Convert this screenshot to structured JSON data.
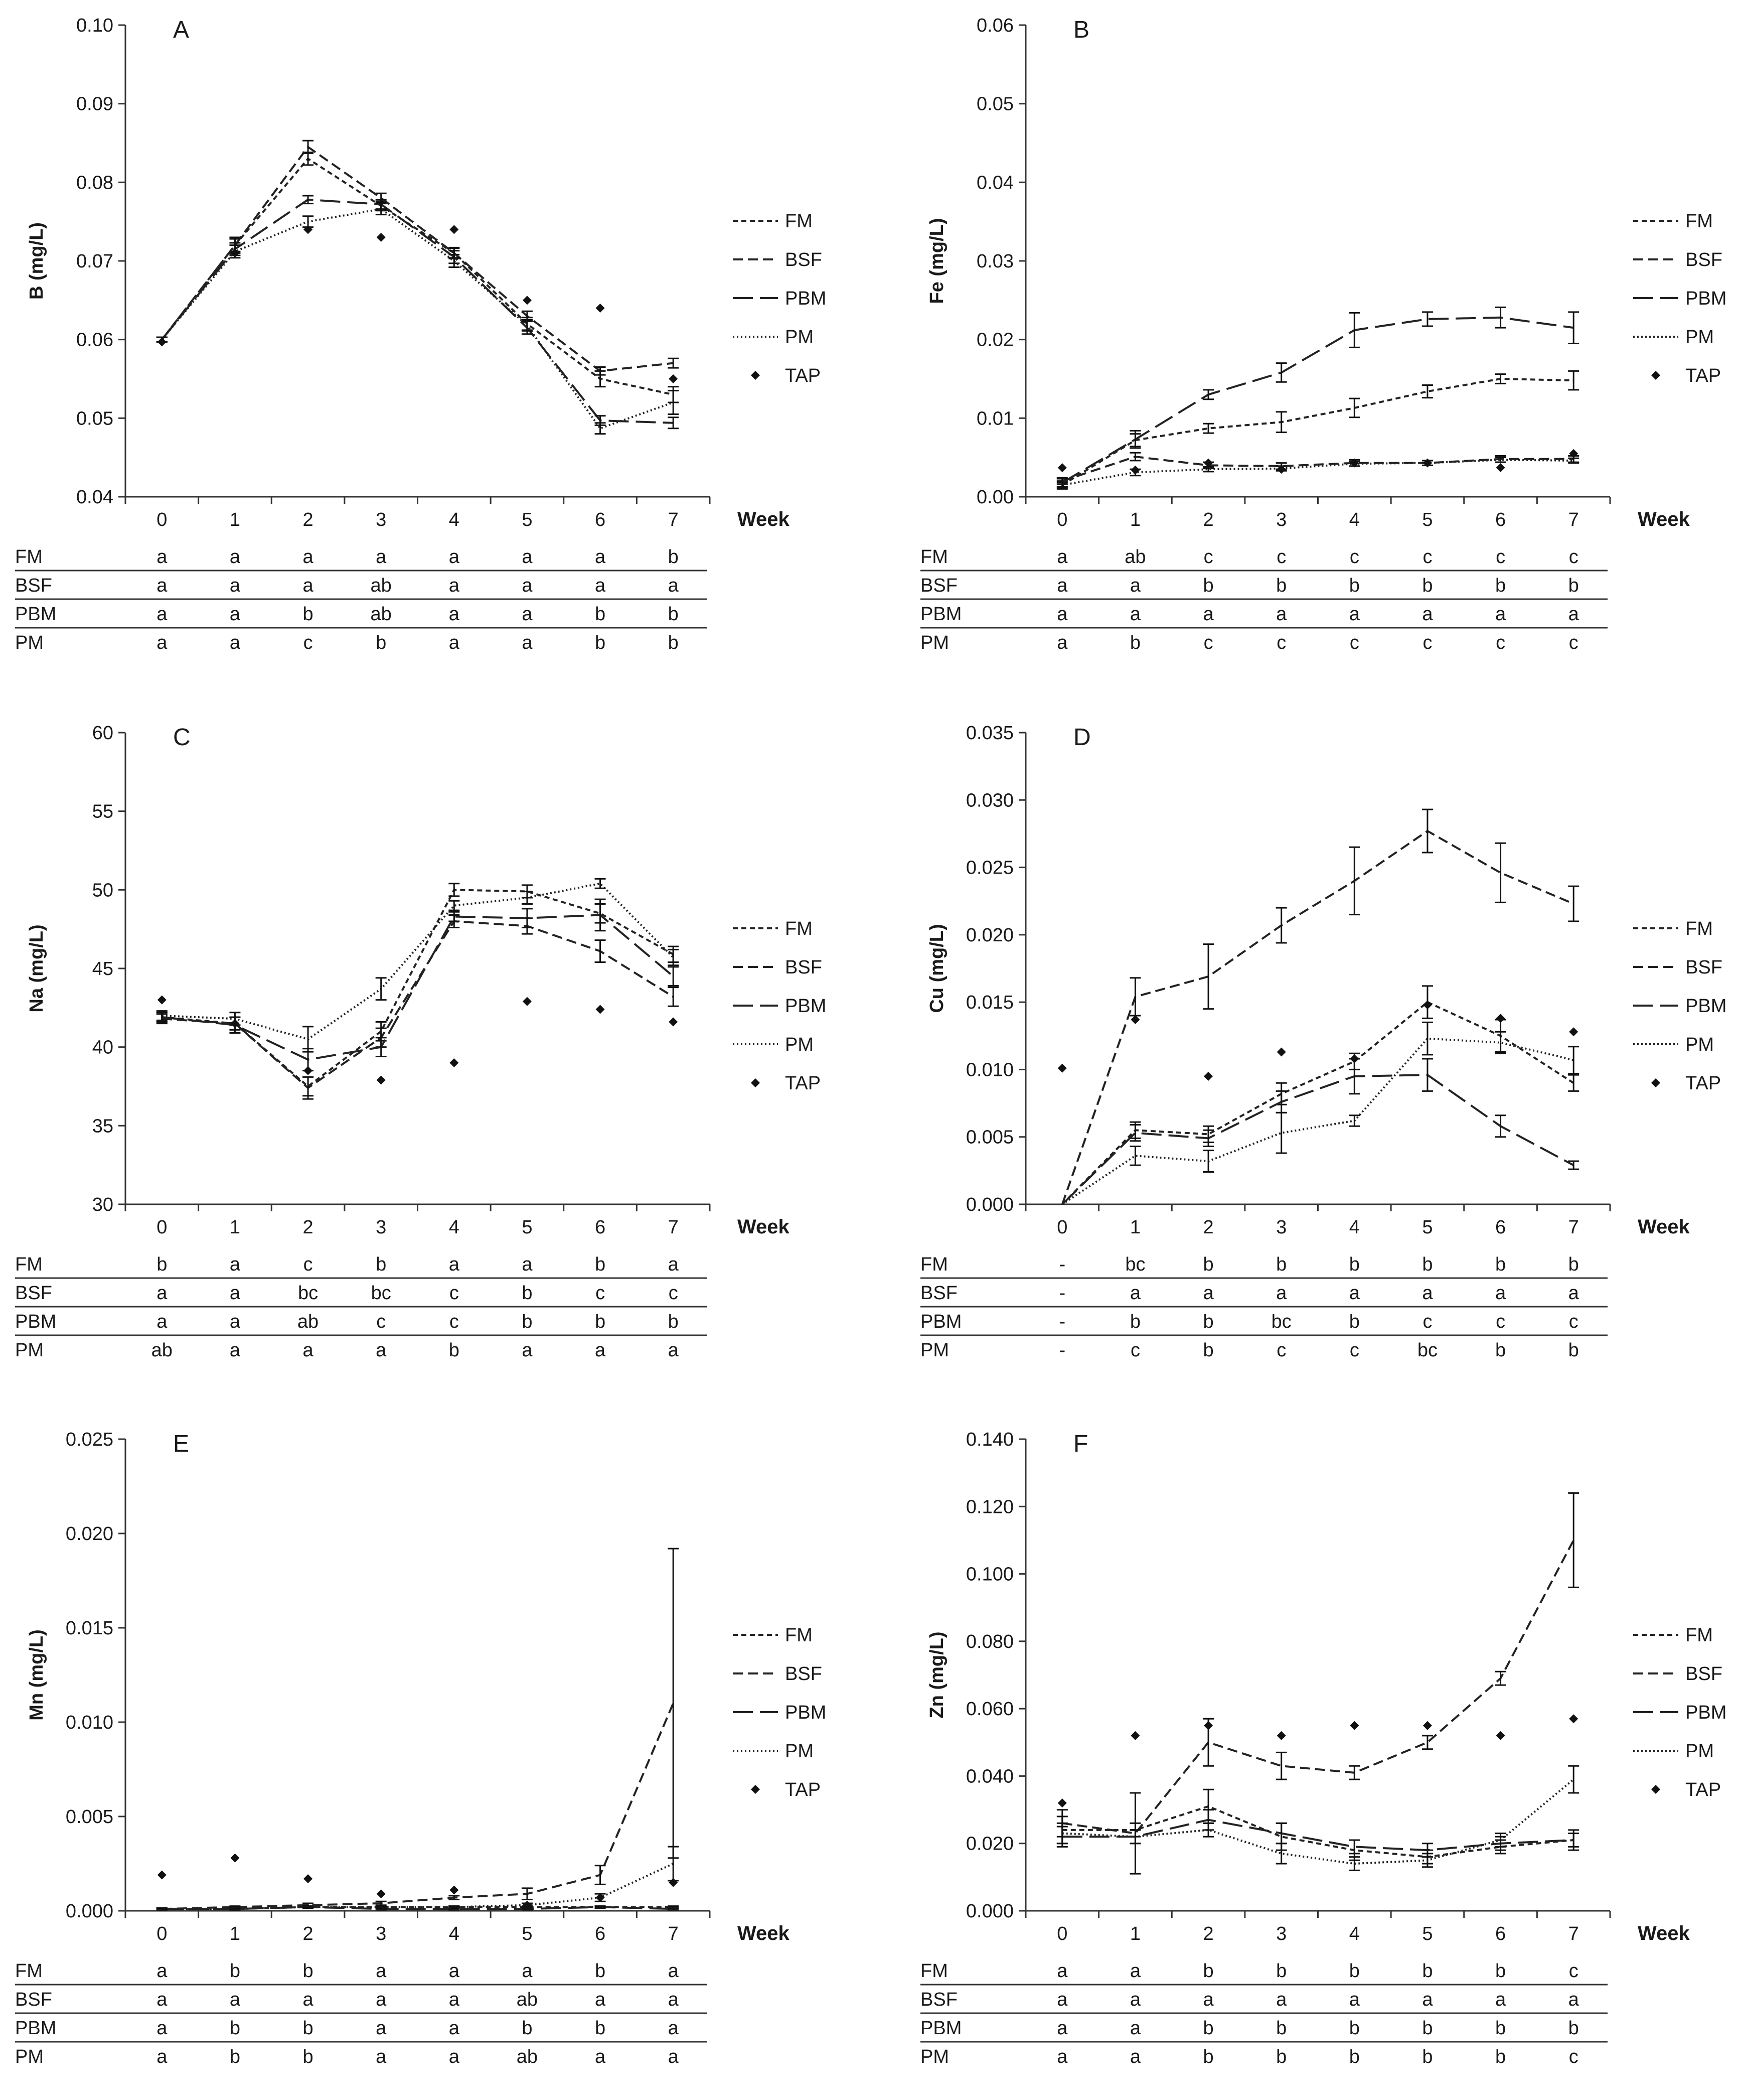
{
  "figure": {
    "week_label": "Week",
    "treatments": [
      "FM",
      "BSF",
      "PBM",
      "PM"
    ],
    "tap_label": "TAP",
    "legend_entries": [
      "FM",
      "BSF",
      "PBM",
      "PM",
      "TAP"
    ]
  },
  "chart_data": [
    {
      "type": "line",
      "panel": "A",
      "ylabel": "B (mg/L)",
      "xlabel": "Week",
      "ylim": [
        0.04,
        0.1
      ],
      "yticks": [
        "0.04",
        "0.05",
        "0.06",
        "0.07",
        "0.08",
        "0.09",
        "0.10"
      ],
      "x": [
        0,
        1,
        2,
        3,
        4,
        5,
        6,
        7
      ],
      "series": [
        {
          "name": "FM",
          "style": "short-dash",
          "values": [
            0.06,
            0.072,
            0.083,
            0.077,
            0.071,
            0.062,
            0.055,
            0.053
          ],
          "errors": [
            0.0003,
            0.001,
            0.0008,
            0.0006,
            0.0007,
            0.0008,
            0.001,
            0.001
          ]
        },
        {
          "name": "BSF",
          "style": "medium-dash",
          "values": [
            0.06,
            0.072,
            0.0845,
            0.078,
            0.071,
            0.063,
            0.056,
            0.057
          ],
          "errors": [
            0.0003,
            0.0008,
            0.0008,
            0.0006,
            0.0006,
            0.0006,
            0.0005,
            0.0006
          ]
        },
        {
          "name": "PBM",
          "style": "long-dash",
          "values": [
            0.06,
            0.0715,
            0.0778,
            0.0772,
            0.0705,
            0.0615,
            0.0497,
            0.0494
          ],
          "errors": [
            0.0003,
            0.0008,
            0.0005,
            0.0006,
            0.0008,
            0.0008,
            0.0006,
            0.0007
          ]
        },
        {
          "name": "PM",
          "style": "dotted",
          "values": [
            0.06,
            0.0712,
            0.075,
            0.0766,
            0.07,
            0.0618,
            0.0487,
            0.052
          ],
          "errors": [
            0.0003,
            0.0008,
            0.0007,
            0.0007,
            0.0008,
            0.0007,
            0.0007,
            0.0015
          ]
        }
      ],
      "tap": [
        0.0597,
        0.071,
        0.074,
        0.073,
        0.074,
        0.065,
        0.064,
        0.055
      ],
      "table": {
        "FM": [
          "a",
          "a",
          "a",
          "a",
          "a",
          "a",
          "a",
          "b"
        ],
        "BSF": [
          "a",
          "a",
          "a",
          "ab",
          "a",
          "a",
          "a",
          "a"
        ],
        "PBM": [
          "a",
          "a",
          "b",
          "ab",
          "a",
          "a",
          "b",
          "b"
        ],
        "PM": [
          "a",
          "a",
          "c",
          "b",
          "a",
          "a",
          "b",
          "b"
        ]
      }
    },
    {
      "type": "line",
      "panel": "B",
      "ylabel": "Fe (mg/L)",
      "xlabel": "Week",
      "ylim": [
        0.0,
        0.06
      ],
      "yticks": [
        "0.00",
        "0.01",
        "0.02",
        "0.03",
        "0.04",
        "0.05",
        "0.06"
      ],
      "x": [
        0,
        1,
        2,
        3,
        4,
        5,
        6,
        7
      ],
      "series": [
        {
          "name": "FM",
          "style": "short-dash",
          "values": [
            0.0015,
            0.0072,
            0.0087,
            0.0095,
            0.0113,
            0.0134,
            0.015,
            0.0148
          ],
          "errors": [
            0.0005,
            0.0008,
            0.0006,
            0.0013,
            0.0012,
            0.0008,
            0.0006,
            0.0012
          ]
        },
        {
          "name": "BSF",
          "style": "medium-dash",
          "values": [
            0.002,
            0.0051,
            0.004,
            0.0039,
            0.0043,
            0.0043,
            0.0048,
            0.0048
          ],
          "errors": [
            0.0004,
            0.0005,
            0.0004,
            0.0004,
            0.0004,
            0.0003,
            0.0004,
            0.0004
          ]
        },
        {
          "name": "PBM",
          "style": "long-dash",
          "values": [
            0.0018,
            0.0073,
            0.013,
            0.0158,
            0.0212,
            0.0226,
            0.0228,
            0.0215
          ],
          "errors": [
            0.0005,
            0.0011,
            0.0006,
            0.0012,
            0.0022,
            0.0009,
            0.0013,
            0.002
          ]
        },
        {
          "name": "PM",
          "style": "dotted",
          "values": [
            0.0015,
            0.0031,
            0.0035,
            0.0036,
            0.0042,
            0.0043,
            0.0047,
            0.0046
          ],
          "errors": [
            0.0003,
            0.0004,
            0.0003,
            0.0003,
            0.0003,
            0.0003,
            0.0003,
            0.0003
          ]
        }
      ],
      "tap": [
        0.0037,
        0.0034,
        0.0043,
        0.0035,
        0.0043,
        0.0043,
        0.0037,
        0.0055
      ],
      "table": {
        "FM": [
          "a",
          "ab",
          "c",
          "c",
          "c",
          "c",
          "c",
          "c"
        ],
        "BSF": [
          "a",
          "a",
          "b",
          "b",
          "b",
          "b",
          "b",
          "b"
        ],
        "PBM": [
          "a",
          "a",
          "a",
          "a",
          "a",
          "a",
          "a",
          "a"
        ],
        "PM": [
          "a",
          "b",
          "c",
          "c",
          "c",
          "c",
          "c",
          "c"
        ]
      }
    },
    {
      "type": "line",
      "panel": "C",
      "ylabel": "Na (mg/L)",
      "xlabel": "Week",
      "ylim": [
        30,
        60
      ],
      "yticks": [
        "30",
        "35",
        "40",
        "45",
        "50",
        "55",
        "60"
      ],
      "x": [
        0,
        1,
        2,
        3,
        4,
        5,
        6,
        7
      ],
      "series": [
        {
          "name": "FM",
          "style": "short-dash",
          "values": [
            41.9,
            41.5,
            37.5,
            41.0,
            50.0,
            49.9,
            48.5,
            45.9
          ],
          "errors": [
            0.3,
            0.4,
            0.6,
            0.6,
            0.4,
            0.4,
            0.6,
            0.5
          ]
        },
        {
          "name": "BSF",
          "style": "medium-dash",
          "values": [
            41.8,
            41.5,
            37.4,
            40.6,
            48.0,
            47.7,
            46.1,
            43.2
          ],
          "errors": [
            0.3,
            0.4,
            0.7,
            0.6,
            0.4,
            0.5,
            0.7,
            0.6
          ]
        },
        {
          "name": "PBM",
          "style": "long-dash",
          "values": [
            41.9,
            41.4,
            39.2,
            40.0,
            48.3,
            48.2,
            48.4,
            44.5
          ],
          "errors": [
            0.3,
            0.5,
            0.7,
            0.6,
            0.3,
            0.6,
            1.0,
            0.6
          ]
        },
        {
          "name": "PM",
          "style": "dotted",
          "values": [
            42.0,
            41.8,
            40.5,
            43.7,
            49.0,
            49.5,
            50.4,
            45.7
          ],
          "errors": [
            0.3,
            0.4,
            0.8,
            0.7,
            0.3,
            0.4,
            0.3,
            0.5
          ]
        }
      ],
      "tap": [
        43.0,
        41.5,
        38.5,
        37.9,
        39.0,
        42.9,
        42.4,
        41.6
      ],
      "table": {
        "FM": [
          "b",
          "a",
          "c",
          "b",
          "a",
          "a",
          "b",
          "a"
        ],
        "BSF": [
          "a",
          "a",
          "bc",
          "bc",
          "c",
          "b",
          "c",
          "c"
        ],
        "PBM": [
          "a",
          "a",
          "ab",
          "c",
          "c",
          "b",
          "b",
          "b"
        ],
        "PM": [
          "ab",
          "a",
          "a",
          "a",
          "b",
          "a",
          "a",
          "a"
        ]
      }
    },
    {
      "type": "line",
      "panel": "D",
      "ylabel": "Cu (mg/L)",
      "xlabel": "Week",
      "ylim": [
        0.0,
        0.035
      ],
      "yticks": [
        "0.000",
        "0.005",
        "0.010",
        "0.015",
        "0.020",
        "0.025",
        "0.030",
        "0.035"
      ],
      "x": [
        0,
        1,
        2,
        3,
        4,
        5,
        6,
        7
      ],
      "series": [
        {
          "name": "FM",
          "style": "short-dash",
          "values": [
            0.0,
            0.0055,
            0.0052,
            0.0082,
            0.0106,
            0.015,
            0.0125,
            0.009
          ],
          "errors": [
            0,
            0.0006,
            0.0006,
            0.0008,
            0.0006,
            0.0012,
            0.0012,
            0.0006
          ]
        },
        {
          "name": "BSF",
          "style": "medium-dash",
          "values": [
            0.0,
            0.0154,
            0.0169,
            0.0207,
            0.024,
            0.0277,
            0.0246,
            0.0223
          ],
          "errors": [
            0,
            0.0014,
            0.0024,
            0.0013,
            0.0025,
            0.0016,
            0.0022,
            0.0013
          ]
        },
        {
          "name": "PBM",
          "style": "long-dash",
          "values": [
            0.0,
            0.0053,
            0.0049,
            0.0076,
            0.0095,
            0.0096,
            0.0058,
            0.0029
          ],
          "errors": [
            0,
            0.0006,
            0.0006,
            0.0008,
            0.0013,
            0.0012,
            0.0008,
            0.0003
          ]
        },
        {
          "name": "PM",
          "style": "dotted",
          "values": [
            0.0,
            0.0036,
            0.0032,
            0.0053,
            0.0062,
            0.0123,
            0.012,
            0.0107
          ],
          "errors": [
            0,
            0.0007,
            0.0008,
            0.0015,
            0.0004,
            0.0012,
            0.0008,
            0.001
          ]
        }
      ],
      "tap": [
        0.0101,
        0.0137,
        0.0095,
        0.0113,
        0.0108,
        0.0148,
        0.0138,
        0.0128
      ],
      "table": {
        "FM": [
          "-",
          "bc",
          "b",
          "b",
          "b",
          "b",
          "b",
          "b"
        ],
        "BSF": [
          "-",
          "a",
          "a",
          "a",
          "a",
          "a",
          "a",
          "a"
        ],
        "PBM": [
          "-",
          "b",
          "b",
          "bc",
          "b",
          "c",
          "c",
          "c"
        ],
        "PM": [
          "-",
          "c",
          "b",
          "c",
          "c",
          "bc",
          "b",
          "b"
        ]
      }
    },
    {
      "type": "line",
      "panel": "E",
      "ylabel": "Mn (mg/L)",
      "xlabel": "Week",
      "ylim": [
        0.0,
        0.025
      ],
      "yticks": [
        "0.000",
        "0.005",
        "0.010",
        "0.015",
        "0.020",
        "0.025"
      ],
      "x": [
        0,
        1,
        2,
        3,
        4,
        5,
        6,
        7
      ],
      "series": [
        {
          "name": "FM",
          "style": "short-dash",
          "values": [
            0.0001,
            0.0001,
            0.0002,
            0.0002,
            0.0002,
            0.0002,
            0.0002,
            0.0002
          ],
          "errors": [
            5e-05,
            5e-05,
            5e-05,
            5e-05,
            5e-05,
            5e-05,
            5e-05,
            5e-05
          ]
        },
        {
          "name": "BSF",
          "style": "medium-dash",
          "values": [
            0.0001,
            0.0002,
            0.0003,
            0.0004,
            0.0007,
            0.0009,
            0.0019,
            0.011
          ],
          "errors": [
            5e-05,
            5e-05,
            0.0001,
            0.0001,
            0.0001,
            0.0003,
            0.0005,
            0.0082
          ]
        },
        {
          "name": "PBM",
          "style": "long-dash",
          "values": [
            0.0001,
            0.0001,
            0.0002,
            0.0001,
            0.0001,
            0.0001,
            0.0002,
            0.0001
          ],
          "errors": [
            5e-05,
            5e-05,
            5e-05,
            5e-05,
            5e-05,
            5e-05,
            5e-05,
            5e-05
          ]
        },
        {
          "name": "PM",
          "style": "dotted",
          "values": [
            0.0001,
            0.0001,
            0.0002,
            0.0002,
            0.0002,
            0.0003,
            0.0007,
            0.0025
          ],
          "errors": [
            5e-05,
            5e-05,
            5e-05,
            5e-05,
            5e-05,
            0.0001,
            0.0002,
            0.0009
          ]
        }
      ],
      "tap": [
        0.0019,
        0.0028,
        0.0017,
        0.0009,
        0.0011,
        0.0003,
        0.0007,
        0.0015
      ],
      "table": {
        "FM": [
          "a",
          "b",
          "b",
          "a",
          "a",
          "a",
          "b",
          "a"
        ],
        "BSF": [
          "a",
          "a",
          "a",
          "a",
          "a",
          "ab",
          "a",
          "a"
        ],
        "PBM": [
          "a",
          "b",
          "b",
          "a",
          "a",
          "b",
          "b",
          "a"
        ],
        "PM": [
          "a",
          "b",
          "b",
          "a",
          "a",
          "ab",
          "a",
          "a"
        ]
      }
    },
    {
      "type": "line",
      "panel": "F",
      "ylabel": "Zn (mg/L)",
      "xlabel": "Week",
      "ylim": [
        0.0,
        0.14
      ],
      "yticks": [
        "0.000",
        "0.020",
        "0.040",
        "0.060",
        "0.080",
        "0.100",
        "0.120",
        "0.140"
      ],
      "x": [
        0,
        1,
        2,
        3,
        4,
        5,
        6,
        7
      ],
      "series": [
        {
          "name": "FM",
          "style": "short-dash",
          "values": [
            0.024,
            0.024,
            0.031,
            0.022,
            0.018,
            0.016,
            0.019,
            0.021
          ],
          "errors": [
            0.004,
            0.002,
            0.005,
            0.004,
            0.003,
            0.002,
            0.002,
            0.003
          ]
        },
        {
          "name": "BSF",
          "style": "medium-dash",
          "values": [
            0.026,
            0.023,
            0.05,
            0.043,
            0.041,
            0.05,
            0.069,
            0.11
          ],
          "errors": [
            0.004,
            0.012,
            0.007,
            0.004,
            0.002,
            0.002,
            0.002,
            0.014
          ]
        },
        {
          "name": "PBM",
          "style": "long-dash",
          "values": [
            0.022,
            0.022,
            0.027,
            0.023,
            0.019,
            0.018,
            0.02,
            0.021
          ],
          "errors": [
            0.003,
            0.002,
            0.003,
            0.003,
            0.002,
            0.002,
            0.002,
            0.002
          ]
        },
        {
          "name": "PM",
          "style": "dotted",
          "values": [
            0.023,
            0.022,
            0.024,
            0.017,
            0.014,
            0.015,
            0.021,
            0.039
          ],
          "errors": [
            0.003,
            0.002,
            0.002,
            0.003,
            0.002,
            0.002,
            0.002,
            0.004
          ]
        }
      ],
      "tap": [
        0.032,
        0.052,
        0.055,
        0.052,
        0.055,
        0.055,
        0.052,
        0.057
      ],
      "table": {
        "FM": [
          "a",
          "a",
          "b",
          "b",
          "b",
          "b",
          "b",
          "c"
        ],
        "BSF": [
          "a",
          "a",
          "a",
          "a",
          "a",
          "a",
          "a",
          "a"
        ],
        "PBM": [
          "a",
          "a",
          "b",
          "b",
          "b",
          "b",
          "b",
          "b"
        ],
        "PM": [
          "a",
          "a",
          "b",
          "b",
          "b",
          "b",
          "b",
          "c"
        ]
      }
    }
  ]
}
